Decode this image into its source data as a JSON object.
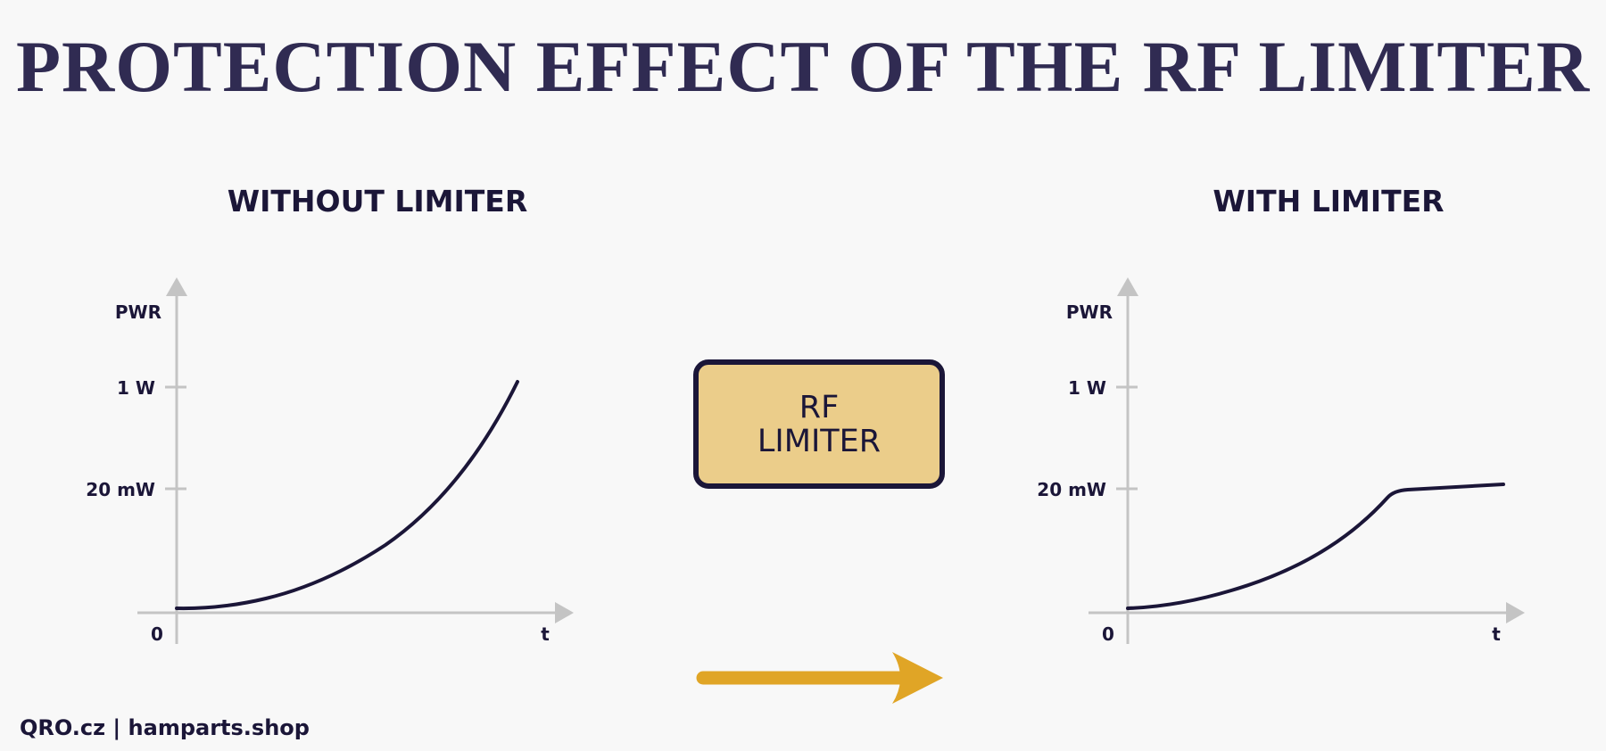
{
  "title": "PROTECTION EFFECT OF THE RF LIMITER",
  "left_panel": {
    "title": "WITHOUT LIMITER",
    "y_axis_label": "PWR",
    "x_axis_label": "t",
    "origin_label": "0",
    "tick_1w": "1 W",
    "tick_20mw": "20 mW"
  },
  "right_panel": {
    "title": "WITH LIMITER",
    "y_axis_label": "PWR",
    "x_axis_label": "t",
    "origin_label": "0",
    "tick_1w": "1 W",
    "tick_20mw": "20 mW"
  },
  "limiter": {
    "line1": "RF",
    "line2": "LIMITER"
  },
  "footer": "QRO.cz | hamparts.shop",
  "colors": {
    "title": "#302b52",
    "curve": "#1b1638",
    "axis": "#c4c4c4",
    "box_fill": "#ebcd8a",
    "arrow": "#e0a526",
    "background": "#f8f8f8"
  }
}
